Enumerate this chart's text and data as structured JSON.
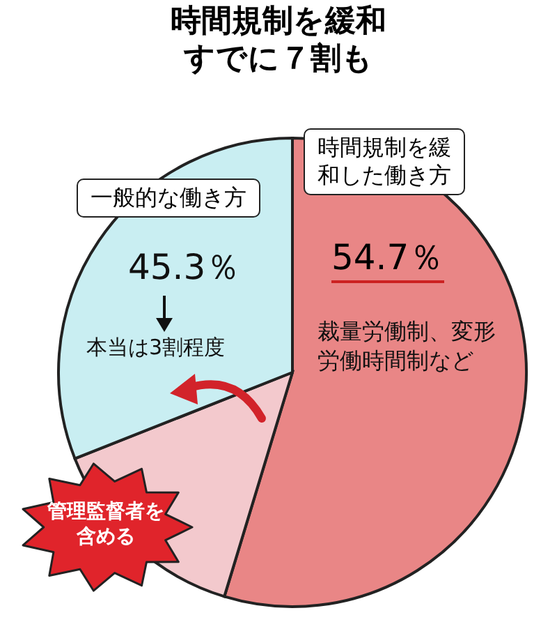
{
  "chart_data": {
    "type": "pie",
    "title": "時間規制を緩和",
    "subtitle": "すでに７割も",
    "categories": [
      "時間規制を緩和した働き方",
      null,
      "一般的な働き方"
    ],
    "values": [
      54.7,
      14.3,
      31
    ],
    "colors": [
      "#e98686",
      "#f3c9cd",
      "#c9eef2"
    ],
    "value_labels": [
      "54.7％",
      null,
      null
    ],
    "annotations": [
      "45.3％",
      "本当は3割程度",
      "裁量労働制、変形労働時間制など",
      "管理監督者を含める"
    ]
  }
}
